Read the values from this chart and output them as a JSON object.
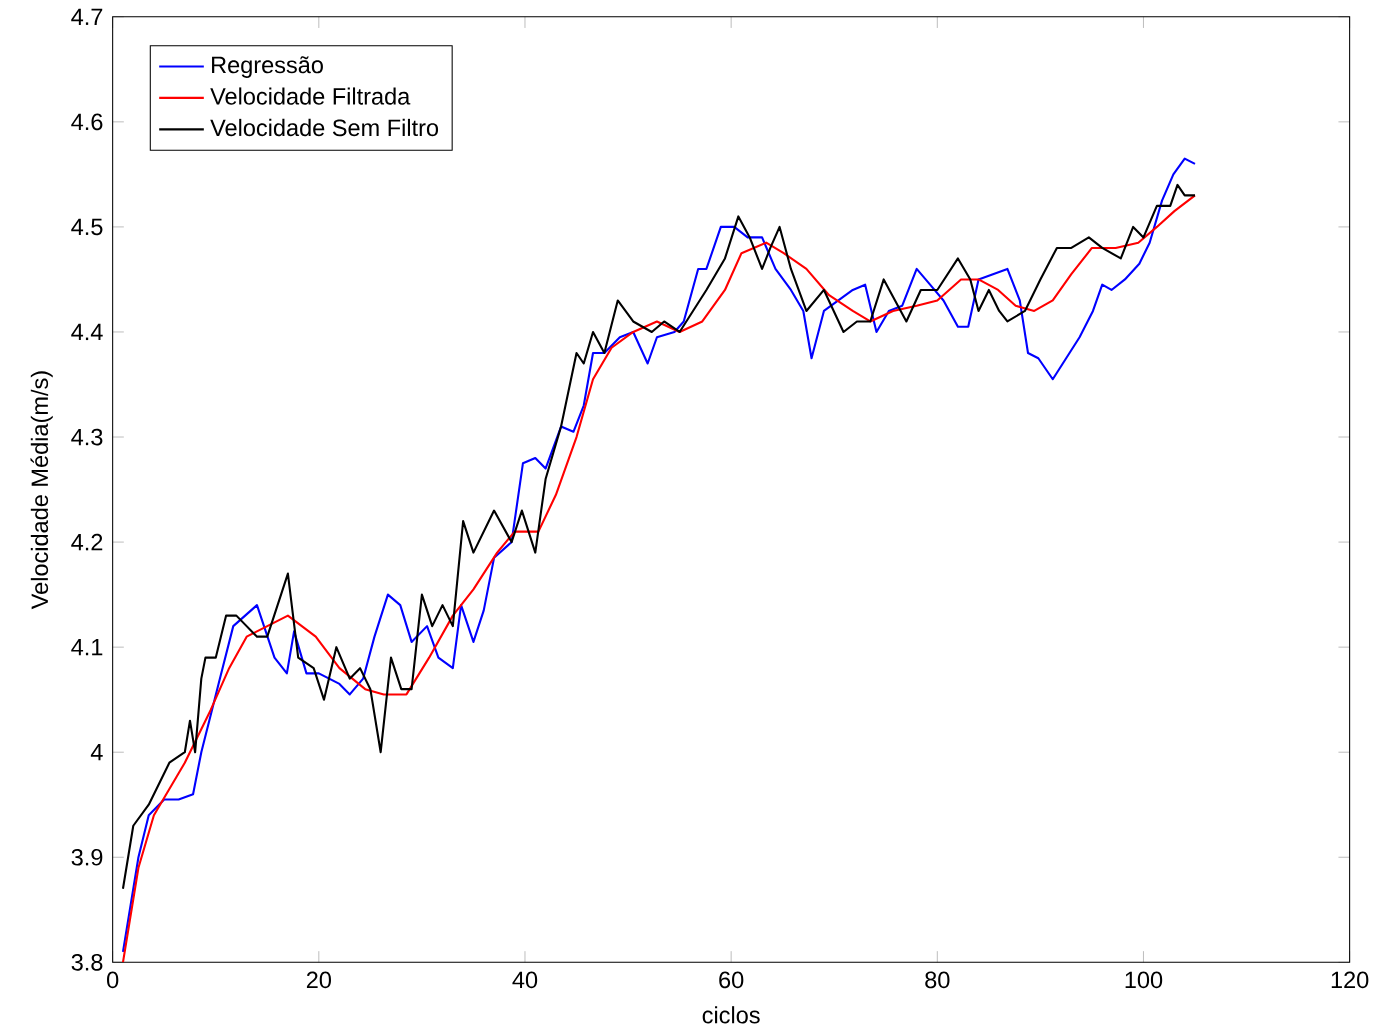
{
  "chart_data": {
    "type": "line",
    "xlabel": "ciclos",
    "ylabel": "Velocidade Média(m/s)",
    "xlim": [
      0,
      120
    ],
    "ylim": [
      3.8,
      4.7
    ],
    "xticks": [
      0,
      20,
      40,
      60,
      80,
      100,
      120
    ],
    "yticks": [
      3.8,
      3.9,
      4,
      4.1,
      4.2,
      4.3,
      4.4,
      4.5,
      4.6,
      4.7
    ],
    "grid": false,
    "legend": "top left",
    "line_style": "solid",
    "marker": "none",
    "series": [
      {
        "name": "Regressão",
        "color": "#0000ff",
        "x": [
          1,
          2.5,
          3.5,
          5,
          6.4,
          7.8,
          8.6,
          10.4,
          11.7,
          14,
          15.7,
          16.9,
          17.6,
          18.8,
          20,
          22,
          23,
          24.3,
          25.4,
          26.7,
          27.9,
          29,
          30.5,
          31.6,
          33,
          33.8,
          35,
          36,
          37,
          38.7,
          39.8,
          41,
          42,
          43.5,
          44.7,
          45.7,
          46.6,
          47.7,
          49.2,
          50.5,
          51.9,
          52.8,
          54.5,
          55.4,
          56.8,
          57.6,
          59,
          60.3,
          61.6,
          63,
          64.3,
          65.8,
          67,
          67.8,
          69,
          70.4,
          71.8,
          73,
          74.1,
          75.3,
          76.6,
          78,
          79.3,
          80.6,
          82,
          83,
          84,
          85.4,
          86.8,
          88,
          88.8,
          89.8,
          91.2,
          92.5,
          93.8,
          95.1,
          96,
          96.9,
          98.2,
          99.6,
          100.6,
          101.8,
          102.9,
          104,
          105
        ],
        "values": [
          3.81,
          3.9,
          3.94,
          3.955,
          3.955,
          3.96,
          4,
          4.07,
          4.12,
          4.14,
          4.09,
          4.075,
          4.115,
          4.075,
          4.075,
          4.065,
          4.055,
          4.07,
          4.11,
          4.15,
          4.14,
          4.105,
          4.12,
          4.09,
          4.08,
          4.14,
          4.105,
          4.135,
          4.185,
          4.2,
          4.275,
          4.28,
          4.27,
          4.31,
          4.305,
          4.33,
          4.38,
          4.38,
          4.395,
          4.4,
          4.37,
          4.395,
          4.4,
          4.41,
          4.46,
          4.46,
          4.5,
          4.5,
          4.49,
          4.49,
          4.46,
          4.44,
          4.42,
          4.375,
          4.42,
          4.43,
          4.44,
          4.445,
          4.4,
          4.42,
          4.425,
          4.46,
          4.445,
          4.43,
          4.405,
          4.405,
          4.45,
          4.455,
          4.46,
          4.43,
          4.38,
          4.375,
          4.355,
          4.375,
          4.395,
          4.42,
          4.445,
          4.44,
          4.45,
          4.465,
          4.485,
          4.525,
          4.55,
          4.565,
          4.56
        ]
      },
      {
        "name": "Velocidade Filtrada",
        "color": "#ff0000",
        "x": [
          1,
          2.5,
          4,
          7,
          9.5,
          11.3,
          13,
          15,
          17,
          19.7,
          22,
          24.5,
          26.3,
          28.5,
          30.7,
          33,
          35,
          37.3,
          39,
          41.3,
          43,
          45,
          46.6,
          48.4,
          50.5,
          52.8,
          55,
          57.2,
          59.4,
          61,
          63.4,
          65.1,
          67.3,
          69.5,
          71.8,
          73.5,
          75.7,
          78,
          80,
          82.3,
          84,
          85.9,
          87.6,
          89.4,
          91.2,
          93,
          95,
          97.3,
          99.5,
          101.3,
          103,
          105
        ],
        "values": [
          3.8,
          3.89,
          3.94,
          3.99,
          4.04,
          4.08,
          4.11,
          4.12,
          4.13,
          4.11,
          4.08,
          4.06,
          4.055,
          4.055,
          4.09,
          4.13,
          4.155,
          4.19,
          4.21,
          4.21,
          4.245,
          4.3,
          4.355,
          4.385,
          4.4,
          4.41,
          4.4,
          4.41,
          4.44,
          4.475,
          4.485,
          4.475,
          4.46,
          4.435,
          4.42,
          4.41,
          4.42,
          4.425,
          4.43,
          4.45,
          4.45,
          4.44,
          4.425,
          4.42,
          4.43,
          4.455,
          4.48,
          4.48,
          4.485,
          4.5,
          4.515,
          4.53
        ]
      },
      {
        "name": "Velocidade Sem Filtro",
        "color": "#000000",
        "x": [
          1,
          2,
          3.5,
          5.5,
          7,
          7.5,
          8,
          8.6,
          9,
          10,
          11,
          12,
          14,
          15,
          17,
          18,
          19.5,
          20.5,
          21.7,
          23,
          24,
          25,
          26,
          27,
          28,
          29,
          30,
          31,
          32,
          33,
          34,
          35,
          37,
          38.7,
          39.7,
          41,
          42,
          43.5,
          45,
          45.7,
          46.6,
          47.7,
          49,
          50.5,
          52.3,
          53.5,
          55,
          56.3,
          57.6,
          59.4,
          60.7,
          61.8,
          63,
          63.8,
          64.7,
          65.8,
          67.3,
          69,
          70.9,
          72.2,
          73.5,
          74.8,
          77,
          78.4,
          80,
          82,
          83.2,
          84,
          85,
          86,
          86.8,
          88.5,
          90,
          91.6,
          93,
          94.7,
          96,
          97.8,
          99,
          100,
          101.3,
          102.6,
          103.3,
          104,
          105
        ],
        "values": [
          3.87,
          3.93,
          3.95,
          3.99,
          4.0,
          4.03,
          4.0,
          4.07,
          4.09,
          4.09,
          4.13,
          4.13,
          4.11,
          4.11,
          4.17,
          4.09,
          4.08,
          4.05,
          4.1,
          4.07,
          4.08,
          4.06,
          4.0,
          4.09,
          4.06,
          4.06,
          4.15,
          4.12,
          4.14,
          4.12,
          4.22,
          4.19,
          4.23,
          4.2,
          4.23,
          4.19,
          4.26,
          4.31,
          4.38,
          4.37,
          4.4,
          4.38,
          4.43,
          4.41,
          4.4,
          4.41,
          4.4,
          4.42,
          4.44,
          4.47,
          4.51,
          4.49,
          4.46,
          4.48,
          4.5,
          4.46,
          4.42,
          4.44,
          4.4,
          4.41,
          4.41,
          4.45,
          4.41,
          4.44,
          4.44,
          4.47,
          4.45,
          4.42,
          4.44,
          4.42,
          4.41,
          4.42,
          4.45,
          4.48,
          4.48,
          4.49,
          4.48,
          4.47,
          4.5,
          4.49,
          4.52,
          4.52,
          4.54,
          4.53,
          4.53
        ]
      }
    ]
  }
}
